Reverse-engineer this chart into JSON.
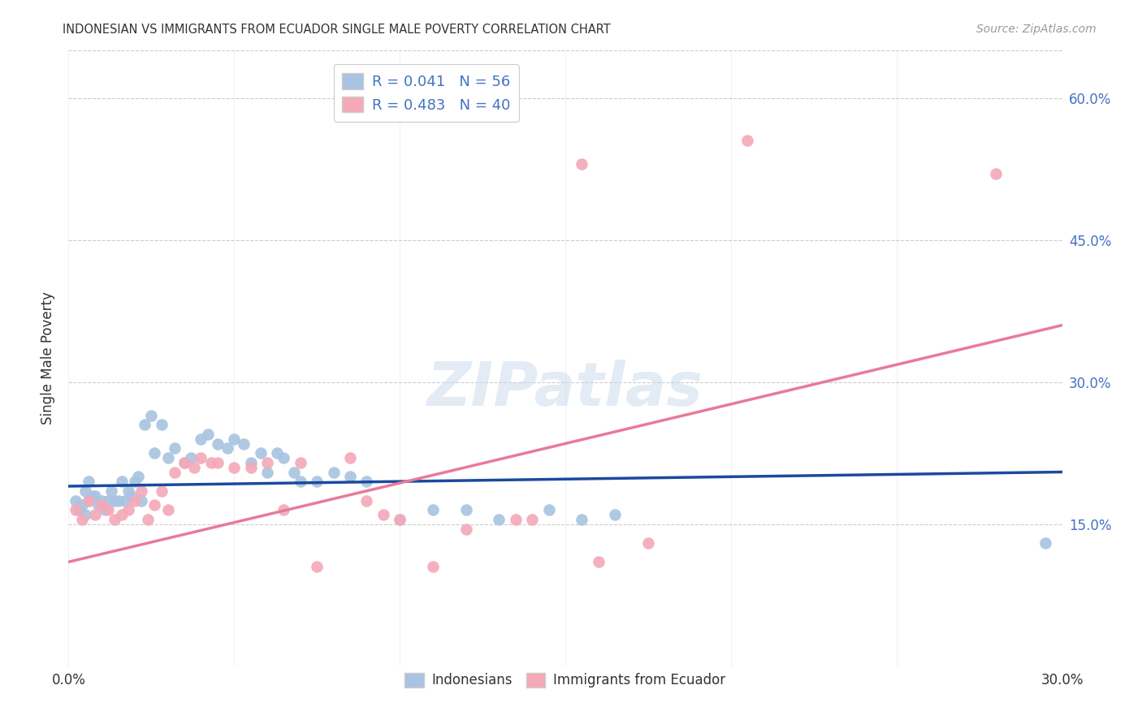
{
  "title": "INDONESIAN VS IMMIGRANTS FROM ECUADOR SINGLE MALE POVERTY CORRELATION CHART",
  "source": "Source: ZipAtlas.com",
  "ylabel": "Single Male Poverty",
  "xlim": [
    0.0,
    0.3
  ],
  "ylim": [
    0.0,
    0.65
  ],
  "yticks": [
    0.15,
    0.3,
    0.45,
    0.6
  ],
  "ytick_labels": [
    "15.0%",
    "30.0%",
    "45.0%",
    "60.0%"
  ],
  "xticks": [
    0.0,
    0.05,
    0.1,
    0.15,
    0.2,
    0.25,
    0.3
  ],
  "xtick_labels": [
    "0.0%",
    "",
    "",
    "",
    "",
    "",
    "30.0%"
  ],
  "color_indonesian": "#a8c4e0",
  "color_ecuador": "#f4a8b8",
  "line_color_indonesian": "#1a4a9e",
  "line_color_ecuador": "#e87a9a",
  "background_color": "#ffffff",
  "grid_color": "#cccccc",
  "indo_r": 0.041,
  "indo_n": 56,
  "ecu_r": 0.483,
  "ecu_n": 40,
  "indonesian_x": [
    0.002,
    0.003,
    0.004,
    0.005,
    0.005,
    0.006,
    0.006,
    0.007,
    0.008,
    0.009,
    0.01,
    0.011,
    0.012,
    0.013,
    0.014,
    0.015,
    0.016,
    0.017,
    0.018,
    0.019,
    0.02,
    0.021,
    0.022,
    0.023,
    0.025,
    0.026,
    0.028,
    0.03,
    0.032,
    0.035,
    0.037,
    0.04,
    0.042,
    0.045,
    0.048,
    0.05,
    0.053,
    0.055,
    0.058,
    0.06,
    0.063,
    0.065,
    0.068,
    0.07,
    0.075,
    0.08,
    0.085,
    0.09,
    0.1,
    0.11,
    0.12,
    0.13,
    0.145,
    0.155,
    0.165,
    0.295
  ],
  "indonesian_y": [
    0.175,
    0.165,
    0.17,
    0.185,
    0.16,
    0.195,
    0.175,
    0.18,
    0.18,
    0.17,
    0.175,
    0.165,
    0.175,
    0.185,
    0.175,
    0.175,
    0.195,
    0.175,
    0.185,
    0.18,
    0.195,
    0.2,
    0.175,
    0.255,
    0.265,
    0.225,
    0.255,
    0.22,
    0.23,
    0.215,
    0.22,
    0.24,
    0.245,
    0.235,
    0.23,
    0.24,
    0.235,
    0.215,
    0.225,
    0.205,
    0.225,
    0.22,
    0.205,
    0.195,
    0.195,
    0.205,
    0.2,
    0.195,
    0.155,
    0.165,
    0.165,
    0.155,
    0.165,
    0.155,
    0.16,
    0.13
  ],
  "ecuador_x": [
    0.002,
    0.004,
    0.006,
    0.008,
    0.01,
    0.012,
    0.014,
    0.016,
    0.018,
    0.02,
    0.022,
    0.024,
    0.026,
    0.028,
    0.03,
    0.032,
    0.035,
    0.038,
    0.04,
    0.043,
    0.045,
    0.05,
    0.055,
    0.06,
    0.065,
    0.07,
    0.075,
    0.085,
    0.09,
    0.095,
    0.1,
    0.11,
    0.12,
    0.135,
    0.14,
    0.155,
    0.16,
    0.175,
    0.205,
    0.28
  ],
  "ecuador_y": [
    0.165,
    0.155,
    0.175,
    0.16,
    0.17,
    0.165,
    0.155,
    0.16,
    0.165,
    0.175,
    0.185,
    0.155,
    0.17,
    0.185,
    0.165,
    0.205,
    0.215,
    0.21,
    0.22,
    0.215,
    0.215,
    0.21,
    0.21,
    0.215,
    0.165,
    0.215,
    0.105,
    0.22,
    0.175,
    0.16,
    0.155,
    0.105,
    0.145,
    0.155,
    0.155,
    0.53,
    0.11,
    0.13,
    0.555,
    0.52
  ],
  "indo_line_x": [
    0.0,
    0.3
  ],
  "indo_line_y": [
    0.19,
    0.205
  ],
  "ecu_line_x": [
    0.0,
    0.3
  ],
  "ecu_line_y": [
    0.11,
    0.36
  ]
}
